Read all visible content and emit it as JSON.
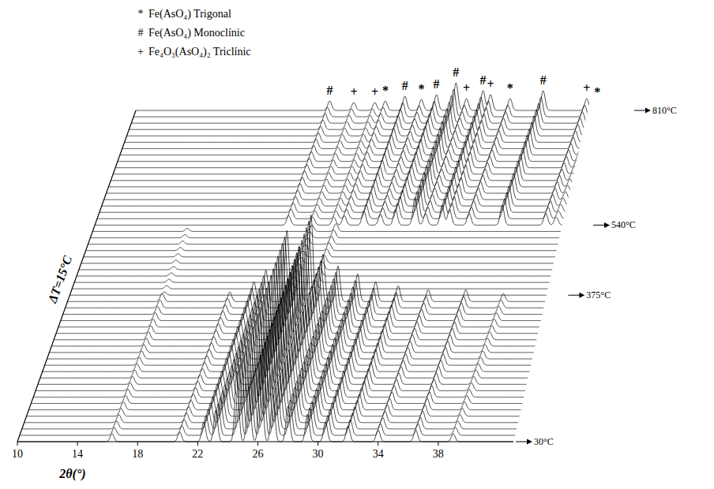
{
  "chart_data": {
    "type": "waterfall",
    "x_label": "2θ(°)",
    "y_label": "ΔT=15°C",
    "xlim": [
      10,
      43
    ],
    "xticks": [
      10,
      14,
      18,
      22,
      26,
      30,
      34,
      38
    ],
    "ylim": [
      30,
      810
    ],
    "temperature_step": 15,
    "yticks": [
      {
        "value": 30,
        "label": "30°C"
      },
      {
        "value": 375,
        "label": "375°C"
      },
      {
        "value": 540,
        "label": "540°C"
      },
      {
        "value": 810,
        "label": "810°C"
      }
    ],
    "legend": "top-left",
    "phases": [
      {
        "symbol": "*",
        "name": "Fe(AsO₄) Trigonal"
      },
      {
        "symbol": "#",
        "name": "Fe(AsO₄) Monoclínic"
      },
      {
        "symbol": "+",
        "name": "Fe₄O₃(AsO₄)₂ Triclínic"
      }
    ],
    "stages": [
      {
        "from": 30,
        "to": 360,
        "peaks": [
          {
            "x": 16.3,
            "height": 10
          },
          {
            "x": 20.8,
            "height": 12
          },
          {
            "x": 22.4,
            "height": 25
          },
          {
            "x": 23.2,
            "height": 40
          },
          {
            "x": 24.6,
            "height": 90
          },
          {
            "x": 25.4,
            "height": 70
          },
          {
            "x": 26.2,
            "height": 110
          },
          {
            "x": 27.0,
            "height": 60
          },
          {
            "x": 28.0,
            "height": 45
          },
          {
            "x": 29.3,
            "height": 35
          },
          {
            "x": 30.5,
            "height": 25
          },
          {
            "x": 32.0,
            "height": 20
          },
          {
            "x": 34.0,
            "height": 15
          },
          {
            "x": 36.5,
            "height": 15
          },
          {
            "x": 39.0,
            "height": 10
          }
        ]
      },
      {
        "from": 375,
        "to": 525,
        "peaks": [
          {
            "x": 16.3,
            "height": 4
          },
          {
            "x": 24.6,
            "height": 8
          },
          {
            "x": 26.2,
            "height": 10
          }
        ]
      },
      {
        "from": 540,
        "to": 810,
        "peaks": [
          {
            "x": 22.9,
            "height": 12,
            "phase": "#"
          },
          {
            "x": 24.5,
            "height": 10,
            "phase": "+"
          },
          {
            "x": 25.9,
            "height": 10,
            "phase": "+"
          },
          {
            "x": 26.6,
            "height": 12,
            "phase": "*"
          },
          {
            "x": 27.9,
            "height": 18,
            "phase": "#"
          },
          {
            "x": 29.0,
            "height": 14,
            "phase": "*"
          },
          {
            "x": 30.0,
            "height": 20,
            "phase": "#"
          },
          {
            "x": 31.3,
            "height": 35,
            "phase": "#"
          },
          {
            "x": 32.0,
            "height": 15,
            "phase": "+"
          },
          {
            "x": 33.1,
            "height": 25,
            "phase": "#"
          },
          {
            "x": 33.6,
            "height": 20,
            "phase": "+"
          },
          {
            "x": 34.9,
            "height": 15,
            "phase": "*"
          },
          {
            "x": 37.1,
            "height": 25,
            "phase": "#"
          },
          {
            "x": 40.0,
            "height": 15,
            "phase": "+"
          },
          {
            "x": 40.7,
            "height": 10,
            "phase": "*"
          }
        ]
      }
    ]
  }
}
